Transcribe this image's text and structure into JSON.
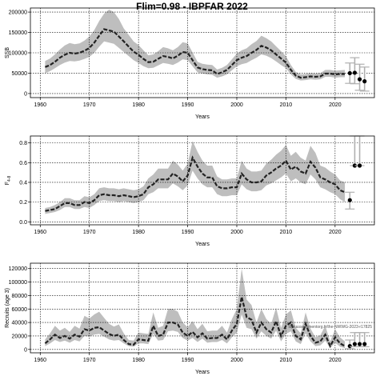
{
  "title": "Flim=0.98 - IBPFAR 2022",
  "chart_data": [
    {
      "type": "line",
      "xlabel": "Years",
      "ylabel": "SSB",
      "xlim": [
        1958,
        2028
      ],
      "ylim": [
        -10000,
        210000
      ],
      "xticks": [
        1960,
        1970,
        1980,
        1990,
        2000,
        2010,
        2020
      ],
      "yticks": [
        0,
        50000,
        100000,
        150000,
        200000
      ],
      "grid": true,
      "band_color": "#bebebe",
      "line_color": "#222222",
      "x": [
        1961,
        1962,
        1963,
        1964,
        1965,
        1966,
        1967,
        1968,
        1969,
        1970,
        1971,
        1972,
        1973,
        1974,
        1975,
        1976,
        1977,
        1978,
        1979,
        1980,
        1981,
        1982,
        1983,
        1984,
        1985,
        1986,
        1987,
        1988,
        1989,
        1990,
        1991,
        1992,
        1993,
        1994,
        1995,
        1996,
        1997,
        1998,
        1999,
        2000,
        2001,
        2002,
        2003,
        2004,
        2005,
        2006,
        2007,
        2008,
        2009,
        2010,
        2011,
        2012,
        2013,
        2014,
        2015,
        2016,
        2017,
        2018,
        2019,
        2020,
        2021,
        2022
      ],
      "median": [
        65000,
        70000,
        78000,
        88000,
        95000,
        100000,
        98000,
        100000,
        105000,
        112000,
        125000,
        142000,
        158000,
        155000,
        152000,
        140000,
        128000,
        115000,
        103000,
        95000,
        85000,
        77000,
        78000,
        85000,
        92000,
        90000,
        86000,
        93000,
        102000,
        100000,
        82000,
        64000,
        60000,
        58000,
        57000,
        48000,
        52000,
        58000,
        70000,
        82000,
        88000,
        92000,
        100000,
        107000,
        117000,
        113000,
        106000,
        96000,
        86000,
        76000,
        58000,
        44000,
        39000,
        40000,
        42000,
        41000,
        42000,
        49000,
        49000,
        47000,
        48000,
        48000
      ],
      "lower": [
        50000,
        55000,
        62000,
        70000,
        76000,
        80000,
        79000,
        81000,
        85000,
        90000,
        100000,
        115000,
        128000,
        125000,
        122000,
        112000,
        102000,
        92000,
        82000,
        75000,
        67000,
        62000,
        63000,
        69000,
        75000,
        73000,
        70000,
        76000,
        84000,
        82000,
        67000,
        52000,
        49000,
        47000,
        46000,
        39000,
        42000,
        47000,
        57000,
        67000,
        72000,
        75000,
        82000,
        88000,
        96000,
        93000,
        87000,
        79000,
        70000,
        62000,
        47000,
        36000,
        32000,
        33000,
        35000,
        34000,
        35000,
        41000,
        41000,
        39000,
        40000,
        40000
      ],
      "upper": [
        80000,
        86000,
        96000,
        108000,
        118000,
        124000,
        121000,
        123000,
        130000,
        140000,
        156000,
        178000,
        196000,
        206000,
        200000,
        183000,
        160000,
        144000,
        128000,
        119000,
        106000,
        94000,
        96000,
        104000,
        114000,
        111000,
        106000,
        114000,
        126000,
        123000,
        101000,
        78000,
        73000,
        71000,
        70000,
        59000,
        63000,
        70000,
        84000,
        98000,
        106000,
        111000,
        121000,
        129000,
        142000,
        136000,
        128000,
        116000,
        104000,
        92000,
        70000,
        53000,
        47000,
        48000,
        50000,
        49000,
        50000,
        58000,
        58000,
        56000,
        57000,
        58000
      ],
      "projection_x": [
        2023,
        2024,
        2025,
        2026
      ],
      "projection_median": [
        50000,
        51000,
        35000,
        30000
      ],
      "projection_lower": [
        25000,
        24000,
        8000,
        6000
      ],
      "projection_upper": [
        75000,
        88000,
        72000,
        65000
      ]
    },
    {
      "type": "line",
      "xlabel": "Years",
      "ylabel": "F",
      "ylabel_subscript": "4-8",
      "xlim": [
        1958,
        2028
      ],
      "ylim": [
        -0.03,
        0.87
      ],
      "xticks": [
        1960,
        1970,
        1980,
        1990,
        2000,
        2010,
        2020
      ],
      "yticks": [
        "0.0",
        "0.2",
        "0.4",
        "0.6",
        "0.8"
      ],
      "ytick_values": [
        0,
        0.2,
        0.4,
        0.6,
        0.8
      ],
      "grid": true,
      "band_color": "#bebebe",
      "line_color": "#222222",
      "x": [
        1961,
        1962,
        1963,
        1964,
        1965,
        1966,
        1967,
        1968,
        1969,
        1970,
        1971,
        1972,
        1973,
        1974,
        1975,
        1976,
        1977,
        1978,
        1979,
        1980,
        1981,
        1982,
        1983,
        1984,
        1985,
        1986,
        1987,
        1988,
        1989,
        1990,
        1991,
        1992,
        1993,
        1994,
        1995,
        1996,
        1997,
        1998,
        1999,
        2000,
        2001,
        2002,
        2003,
        2004,
        2005,
        2006,
        2007,
        2008,
        2009,
        2010,
        2011,
        2012,
        2013,
        2014,
        2015,
        2016,
        2017,
        2018,
        2019,
        2020,
        2021,
        2022
      ],
      "median": [
        0.11,
        0.12,
        0.13,
        0.16,
        0.19,
        0.19,
        0.17,
        0.17,
        0.2,
        0.19,
        0.22,
        0.27,
        0.28,
        0.27,
        0.27,
        0.26,
        0.27,
        0.26,
        0.25,
        0.26,
        0.28,
        0.35,
        0.38,
        0.43,
        0.43,
        0.43,
        0.49,
        0.46,
        0.41,
        0.47,
        0.65,
        0.56,
        0.49,
        0.45,
        0.45,
        0.36,
        0.34,
        0.34,
        0.35,
        0.35,
        0.49,
        0.43,
        0.4,
        0.4,
        0.41,
        0.47,
        0.5,
        0.54,
        0.57,
        0.62,
        0.53,
        0.56,
        0.51,
        0.49,
        0.61,
        0.55,
        0.45,
        0.43,
        0.4,
        0.38,
        0.32,
        0.3
      ],
      "lower": [
        0.08,
        0.09,
        0.1,
        0.12,
        0.15,
        0.15,
        0.13,
        0.13,
        0.15,
        0.14,
        0.17,
        0.21,
        0.22,
        0.21,
        0.21,
        0.2,
        0.21,
        0.2,
        0.19,
        0.2,
        0.22,
        0.28,
        0.3,
        0.34,
        0.34,
        0.34,
        0.39,
        0.36,
        0.32,
        0.37,
        0.52,
        0.44,
        0.38,
        0.35,
        0.35,
        0.28,
        0.26,
        0.26,
        0.27,
        0.27,
        0.38,
        0.33,
        0.31,
        0.31,
        0.32,
        0.37,
        0.39,
        0.42,
        0.45,
        0.49,
        0.41,
        0.44,
        0.4,
        0.38,
        0.48,
        0.43,
        0.35,
        0.33,
        0.3,
        0.28,
        0.23,
        0.2
      ],
      "upper": [
        0.14,
        0.15,
        0.17,
        0.2,
        0.24,
        0.24,
        0.22,
        0.22,
        0.26,
        0.25,
        0.28,
        0.34,
        0.35,
        0.34,
        0.34,
        0.33,
        0.34,
        0.33,
        0.32,
        0.33,
        0.36,
        0.44,
        0.48,
        0.54,
        0.54,
        0.54,
        0.62,
        0.58,
        0.52,
        0.59,
        0.82,
        0.71,
        0.62,
        0.57,
        0.57,
        0.46,
        0.43,
        0.43,
        0.44,
        0.44,
        0.62,
        0.54,
        0.51,
        0.51,
        0.52,
        0.59,
        0.63,
        0.68,
        0.72,
        0.78,
        0.67,
        0.71,
        0.65,
        0.62,
        0.77,
        0.7,
        0.57,
        0.55,
        0.51,
        0.48,
        0.42,
        0.4
      ],
      "projection_x": [
        2023,
        2024,
        2025
      ],
      "projection_median": [
        0.22,
        0.57,
        0.57
      ],
      "projection_lower": [
        0.13,
        0.57,
        0.57
      ],
      "projection_upper": [
        0.3,
        1.0,
        1.0
      ]
    },
    {
      "type": "line",
      "xlabel": "Years",
      "ylabel": "Recruits (age 3)",
      "xlim": [
        1958,
        2028
      ],
      "ylim": [
        -5000,
        128000
      ],
      "xticks": [
        1960,
        1970,
        1980,
        1990,
        2000,
        2010,
        2020
      ],
      "yticks": [
        0,
        20000,
        40000,
        60000,
        80000,
        100000,
        120000
      ],
      "grid": true,
      "band_color": "#bebebe",
      "line_color": "#222222",
      "annotation": "ibpkassessmentorg.fr/the-NWWG-2023-r17825",
      "x": [
        1961,
        1962,
        1963,
        1964,
        1965,
        1966,
        1967,
        1968,
        1969,
        1970,
        1971,
        1972,
        1973,
        1974,
        1975,
        1976,
        1977,
        1978,
        1979,
        1980,
        1981,
        1982,
        1983,
        1984,
        1985,
        1986,
        1987,
        1988,
        1989,
        1990,
        1991,
        1992,
        1993,
        1994,
        1995,
        1996,
        1997,
        1998,
        1999,
        2000,
        2001,
        2002,
        2003,
        2004,
        2005,
        2006,
        2007,
        2008,
        2009,
        2010,
        2011,
        2012,
        2013,
        2014,
        2015,
        2016,
        2017,
        2018,
        2019,
        2020,
        2021,
        2022
      ],
      "median": [
        9000,
        15000,
        22000,
        17000,
        20000,
        16000,
        22000,
        19000,
        30000,
        28000,
        32000,
        33000,
        28000,
        23000,
        20000,
        22000,
        14000,
        8000,
        7000,
        15000,
        14000,
        13000,
        35000,
        20000,
        22000,
        40000,
        40000,
        37000,
        25000,
        20000,
        26000,
        18000,
        24000,
        16000,
        17000,
        17000,
        22000,
        15000,
        28000,
        38000,
        78000,
        48000,
        44000,
        25000,
        40000,
        30000,
        25000,
        42000,
        20000,
        35000,
        40000,
        20000,
        15000,
        38000,
        20000,
        10000,
        12000,
        22000,
        5000,
        18000,
        9000,
        5000
      ],
      "lower": [
        5000,
        9000,
        14000,
        11000,
        13000,
        10000,
        14000,
        12000,
        20000,
        19000,
        22000,
        23000,
        19000,
        15000,
        13000,
        14000,
        9000,
        5000,
        4000,
        9000,
        9000,
        8000,
        23000,
        13000,
        14000,
        27000,
        28000,
        26000,
        17000,
        13000,
        17000,
        11000,
        16000,
        10000,
        11000,
        11000,
        14000,
        9000,
        18000,
        25000,
        52000,
        32000,
        30000,
        16000,
        27000,
        20000,
        16000,
        28000,
        12000,
        23000,
        27000,
        12000,
        8000,
        24000,
        12000,
        5000,
        6000,
        13000,
        2000,
        10000,
        4000,
        2000
      ],
      "upper": [
        15000,
        24000,
        35000,
        28000,
        32000,
        26000,
        35000,
        31000,
        50000,
        46000,
        52000,
        56000,
        47000,
        38000,
        34000,
        37000,
        24000,
        14000,
        13000,
        25000,
        24000,
        23000,
        55000,
        32000,
        35000,
        60000,
        60000,
        56000,
        40000,
        33000,
        42000,
        30000,
        38000,
        27000,
        28000,
        28000,
        35000,
        25000,
        45000,
        60000,
        120000,
        74000,
        66000,
        40000,
        60000,
        45000,
        38000,
        62000,
        32000,
        52000,
        58000,
        32000,
        24000,
        55000,
        31000,
        18000,
        21000,
        35000,
        12000,
        30000,
        18000,
        12000
      ],
      "projection_x": [
        2023,
        2024,
        2025,
        2026
      ],
      "projection_median": [
        5000,
        8000,
        8000,
        8000
      ],
      "projection_lower": [
        1000,
        4000,
        4000,
        4000
      ],
      "projection_upper": [
        14000,
        25000,
        25000,
        25000
      ]
    }
  ]
}
